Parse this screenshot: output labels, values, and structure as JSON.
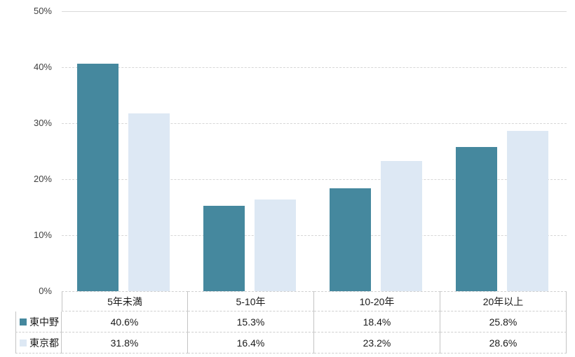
{
  "chart_data": {
    "type": "bar",
    "title": "",
    "xlabel": "",
    "ylabel": "",
    "categories": [
      "5年未満",
      "5-10年",
      "10-20年",
      "20年以上"
    ],
    "series": [
      {
        "name": "東中野",
        "color": "#45889E",
        "values": [
          40.6,
          15.3,
          18.4,
          25.8
        ]
      },
      {
        "name": "東京都",
        "color": "#DDE8F4",
        "values": [
          31.8,
          16.4,
          23.2,
          28.6
        ]
      }
    ],
    "ylim": [
      0,
      50
    ],
    "yticks": [
      {
        "value": 0,
        "label": "0%"
      },
      {
        "value": 10,
        "label": "10%"
      },
      {
        "value": 20,
        "label": "20%"
      },
      {
        "value": 30,
        "label": "30%"
      },
      {
        "value": 40,
        "label": "40%"
      },
      {
        "value": 50,
        "label": "50%"
      }
    ],
    "grid": true,
    "gridline_color": "#d9d9d9",
    "legend_position": "table-left"
  },
  "table": {
    "header": [
      "5年未満",
      "5-10年",
      "10-20年",
      "20年以上"
    ],
    "rows": [
      {
        "label": "東中野",
        "swatch_color": "#45889E",
        "cells": [
          "40.6%",
          "15.3%",
          "18.4%",
          "25.8%"
        ]
      },
      {
        "label": "東京都",
        "swatch_color": "#DDE8F4",
        "cells": [
          "31.8%",
          "16.4%",
          "23.2%",
          "28.6%"
        ]
      }
    ]
  }
}
